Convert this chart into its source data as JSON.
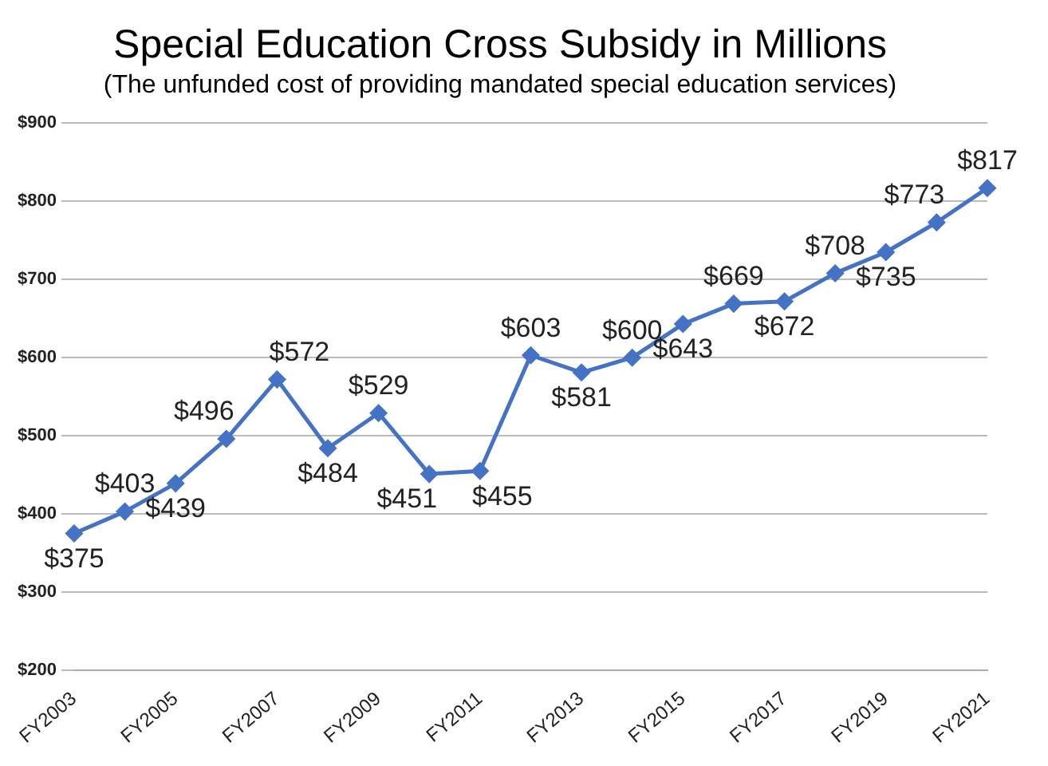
{
  "chart_data": {
    "type": "line",
    "title": "Special Education Cross Subsidy in Millions",
    "subtitle": "(The unfunded cost of providing mandated special education services)",
    "categories": [
      "FY2003",
      null,
      "FY2005",
      null,
      "FY2007",
      null,
      "FY2009",
      null,
      "FY2011",
      null,
      "FY2013",
      null,
      "FY2015",
      null,
      "FY2017",
      null,
      "FY2019",
      null,
      "FY2021"
    ],
    "series": [
      {
        "color": "#4472c4",
        "values": [
          375,
          403,
          439,
          496,
          572,
          484,
          529,
          451,
          455,
          603,
          581,
          600,
          643,
          669,
          672,
          708,
          735,
          773,
          817
        ],
        "value_labels": [
          "$375",
          "$403",
          "$439",
          "$496",
          "$572",
          "$484",
          "$529",
          "$451",
          "$455",
          "$603",
          "$581",
          "$600",
          "$643",
          "$669",
          "$672",
          "$708",
          "$735",
          "$773",
          "$817"
        ]
      }
    ],
    "ylim": [
      200,
      900
    ],
    "yticks": [
      {
        "value": 200,
        "label": "$200"
      },
      {
        "value": 300,
        "label": "$300"
      },
      {
        "value": 400,
        "label": "$400"
      },
      {
        "value": 500,
        "label": "$500"
      },
      {
        "value": 600,
        "label": "$600"
      },
      {
        "value": 700,
        "label": "$700"
      },
      {
        "value": 800,
        "label": "$800"
      },
      {
        "value": 900,
        "label": "$900"
      }
    ],
    "grid": "y",
    "legend": false,
    "marker": "diamond",
    "line_style": "solid"
  }
}
